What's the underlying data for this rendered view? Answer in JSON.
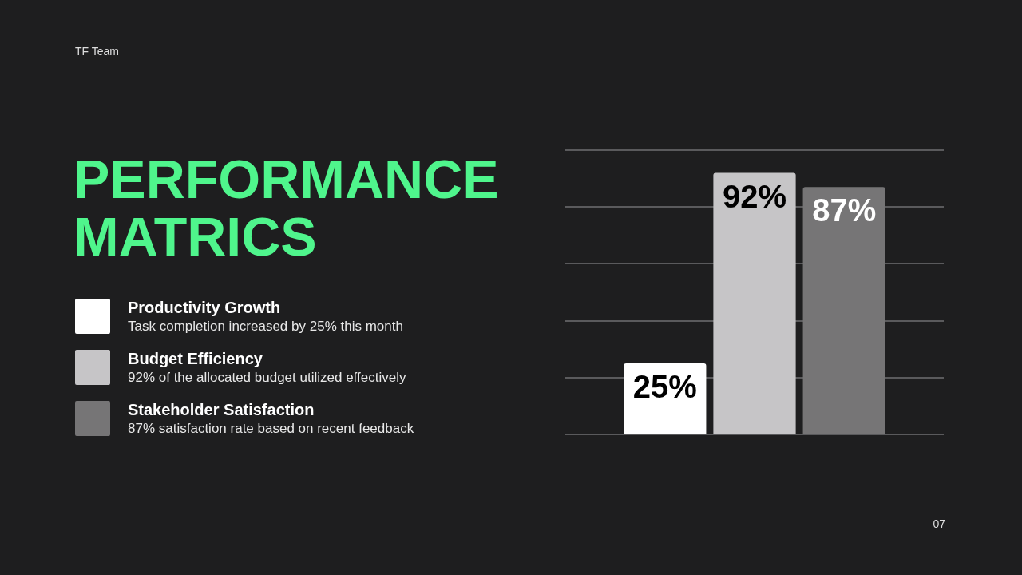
{
  "chart_data": {
    "type": "bar",
    "title": "PERFORMANCE MATRICS",
    "categories": [
      null
    ],
    "series": [
      {
        "name": "Productivity Growth",
        "color": "#ffffff",
        "values": [
          25
        ],
        "value_labels": [
          "25%"
        ]
      },
      {
        "name": "Budget Efficiency",
        "color": "#c6c5c7",
        "values": [
          92
        ],
        "value_labels": [
          "92%"
        ]
      },
      {
        "name": "Stakeholder Satisfaction",
        "color": "#767576",
        "values": [
          87
        ],
        "value_labels": [
          "87%"
        ]
      }
    ],
    "grid": "y",
    "tick_labels": false,
    "legend": "left",
    "annotations": [
      "Task completion increased by 25% this month",
      "92% of the allocated budget utilized effectively",
      "87% satisfaction rate based on recent feedback",
      "TF Team",
      "07"
    ]
  }
}
